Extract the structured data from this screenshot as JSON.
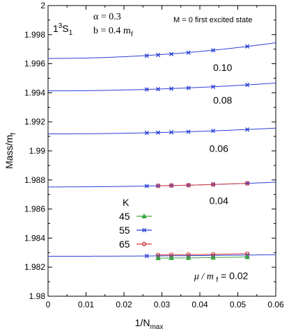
{
  "chart_data": {
    "type": "line",
    "xlabel_main": "1/N",
    "xlabel_sub": "max",
    "ylabel": "Mass/m",
    "ylabel_sub": "f",
    "xlim": [
      0,
      0.06
    ],
    "ylim": [
      1.98,
      2.0
    ],
    "xticks": [
      "0",
      "0.01",
      "0.02",
      "0.03",
      "0.04",
      "0.05",
      "0.06"
    ],
    "yticks": [
      "1.98",
      "1.982",
      "1.984",
      "1.986",
      "1.988",
      "1.99",
      "1.992",
      "1.994",
      "1.996",
      "1.998",
      "2"
    ],
    "grid": false,
    "state_label": {
      "main": "1",
      "sup": "3",
      "letter": "S",
      "sub": "1"
    },
    "alpha_label": "α = 0.3",
    "b_label": "b = 0.4 m",
    "b_label_sub": "f",
    "mode_label": "M = 0 first excited state",
    "legend": {
      "title": "K",
      "entries": [
        {
          "label": "45",
          "color": "#3aa33a",
          "marker": "triangle"
        },
        {
          "label": "55",
          "color": "#2a3fd6",
          "marker": "x"
        },
        {
          "label": "65",
          "color": "#d63a3a",
          "marker": "circle"
        }
      ]
    },
    "curves": [
      {
        "label": "0.10",
        "a": 1.99636,
        "b": 0.0,
        "c": 0.3,
        "x_end": 0.06
      },
      {
        "label": "0.08",
        "a": 1.99413,
        "b": 0.0,
        "c": 0.15,
        "x_end": 0.06
      },
      {
        "label": "0.06",
        "a": 1.99117,
        "b": 0.0,
        "c": 0.11,
        "x_end": 0.06
      },
      {
        "label": "0.04",
        "a": 1.98752,
        "b": 0.0,
        "c": 0.09,
        "x_end": 0.06
      },
      {
        "label": "μ / m",
        "label_sub": "f",
        "label_tail": "= 0.02",
        "a": 1.98275,
        "b": 0.0,
        "c": 0.03,
        "x_end": 0.06
      }
    ],
    "series": [
      {
        "name": "55",
        "color": "#2a3fd6",
        "marker": "x",
        "points": [
          [
            0.026,
            1.99655
          ],
          [
            0.029,
            1.9966
          ],
          [
            0.0325,
            1.99666
          ],
          [
            0.037,
            1.99676
          ],
          [
            0.0435,
            1.99692
          ],
          [
            0.0525,
            1.99719
          ],
          [
            0.026,
            1.99423
          ],
          [
            0.029,
            1.99425
          ],
          [
            0.0325,
            1.99428
          ],
          [
            0.037,
            1.99433
          ],
          [
            0.0435,
            1.99441
          ],
          [
            0.0525,
            1.99454
          ],
          [
            0.026,
            1.99124
          ],
          [
            0.029,
            1.99126
          ],
          [
            0.0325,
            1.99128
          ],
          [
            0.037,
            1.99132
          ],
          [
            0.0435,
            1.99138
          ],
          [
            0.0525,
            1.99147
          ],
          [
            0.026,
            1.98758
          ],
          [
            0.029,
            1.9876
          ],
          [
            0.0325,
            1.98762
          ],
          [
            0.037,
            1.98764
          ],
          [
            0.0435,
            1.98769
          ],
          [
            0.0525,
            1.98777
          ],
          [
            0.026,
            1.98277
          ],
          [
            0.029,
            1.98278
          ],
          [
            0.0325,
            1.98278
          ],
          [
            0.037,
            1.98279
          ],
          [
            0.0435,
            1.98281
          ],
          [
            0.0525,
            1.98284
          ]
        ]
      },
      {
        "name": "65",
        "color": "#d63a3a",
        "marker": "circle",
        "points": [
          [
            0.029,
            1.9876
          ],
          [
            0.0325,
            1.98762
          ],
          [
            0.037,
            1.98764
          ],
          [
            0.0435,
            1.98769
          ],
          [
            0.0525,
            1.98777
          ],
          [
            0.029,
            1.98284
          ],
          [
            0.0325,
            1.98285
          ],
          [
            0.037,
            1.98286
          ],
          [
            0.0435,
            1.98288
          ],
          [
            0.0525,
            1.98293
          ]
        ]
      },
      {
        "name": "45",
        "color": "#3aa33a",
        "marker": "triangle",
        "points": [
          [
            0.029,
            1.98262
          ],
          [
            0.0325,
            1.98263
          ],
          [
            0.037,
            1.98264
          ],
          [
            0.0435,
            1.98266
          ],
          [
            0.0525,
            1.9827
          ]
        ]
      }
    ]
  }
}
